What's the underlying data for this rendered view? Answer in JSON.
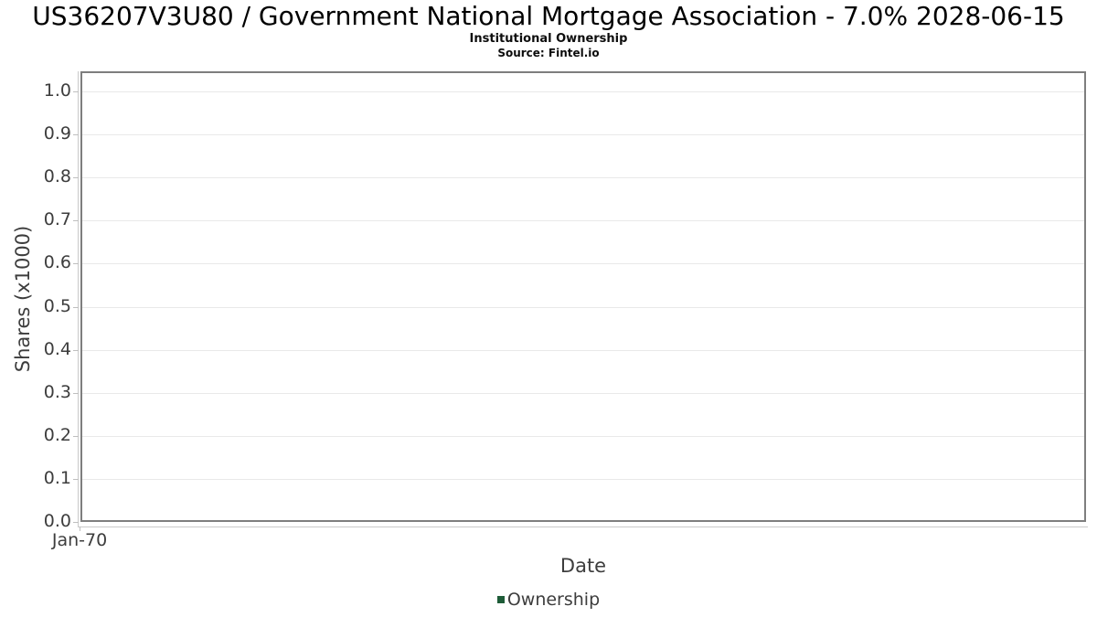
{
  "chart_data": {
    "type": "line",
    "title": "US36207V3U80 / Government National Mortgage Association - 7.0% 2028-06-15",
    "subtitle": "Institutional Ownership",
    "source": "Source: Fintel.io",
    "xlabel": "Date",
    "ylabel": "Shares (x1000)",
    "ylim": [
      0.0,
      1.0
    ],
    "y_ticks": [
      0.0,
      0.1,
      0.2,
      0.3,
      0.4,
      0.5,
      0.6,
      0.7,
      0.8,
      0.9,
      1.0
    ],
    "x_ticks": [
      "Jan-70"
    ],
    "grid": "horizontal-only",
    "legend": {
      "position": "bottom-center",
      "entries": [
        {
          "label": "Ownership",
          "color": "#1e5c38"
        }
      ]
    },
    "series": [
      {
        "name": "Ownership",
        "color": "#1e5c38",
        "x": [],
        "values": []
      }
    ],
    "style": {
      "plot_background": "#ffffff",
      "plot_border_color": "#7e7e7e",
      "gridline_color": "#e9e9e9",
      "axis_line_color": "#c9c9c9",
      "tick_label_color": "#3d3d3d",
      "title_color": "#000000"
    }
  }
}
